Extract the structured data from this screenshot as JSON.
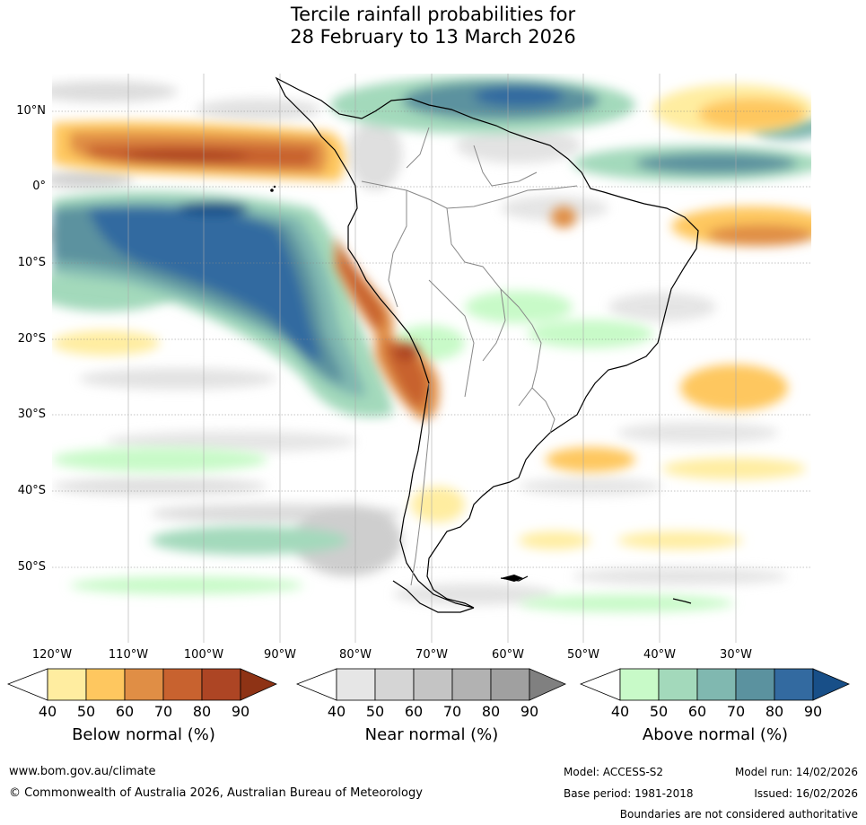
{
  "title": {
    "line1": "Tercile rainfall probabilities for",
    "line2": "28 February to 13 March 2026"
  },
  "map": {
    "lat_labels": [
      "10°N",
      "0°",
      "10°S",
      "20°S",
      "30°S",
      "40°S",
      "50°S"
    ],
    "lon_labels": [
      "120°W",
      "110°W",
      "100°W",
      "90°W",
      "80°W",
      "70°W",
      "60°W",
      "50°W",
      "40°W",
      "30°W"
    ]
  },
  "legends": [
    {
      "title": "Below normal (%)",
      "ticks": [
        "40",
        "50",
        "60",
        "70",
        "80",
        "90"
      ],
      "colors": [
        "#ffffff",
        "#ffeda0",
        "#fec75f",
        "#e08e45",
        "#c8622f",
        "#ad4524",
        "#8e3315"
      ]
    },
    {
      "title": "Near normal (%)",
      "ticks": [
        "40",
        "50",
        "60",
        "70",
        "80",
        "90"
      ],
      "colors": [
        "#ffffff",
        "#e6e6e6",
        "#d5d5d5",
        "#c4c4c4",
        "#b2b2b2",
        "#a0a0a0",
        "#808080"
      ]
    },
    {
      "title": "Above normal (%)",
      "ticks": [
        "40",
        "50",
        "60",
        "70",
        "80",
        "90"
      ],
      "colors": [
        "#ffffff",
        "#c8fac8",
        "#a3d9bb",
        "#80b8b0",
        "#5b929f",
        "#336aa0",
        "#184f88"
      ]
    }
  ],
  "footer": {
    "website": "www.bom.gov.au/climate",
    "copyright": "© Commonwealth of Australia 2026, Australian Bureau of Meteorology",
    "model": "Model: ACCESS-S2",
    "base_period": "Base period: 1981-2018",
    "model_run": "Model run: 14/02/2026",
    "issued": "Issued: 16/02/2026",
    "disclaimer": "Boundaries are not considered authoritative"
  }
}
